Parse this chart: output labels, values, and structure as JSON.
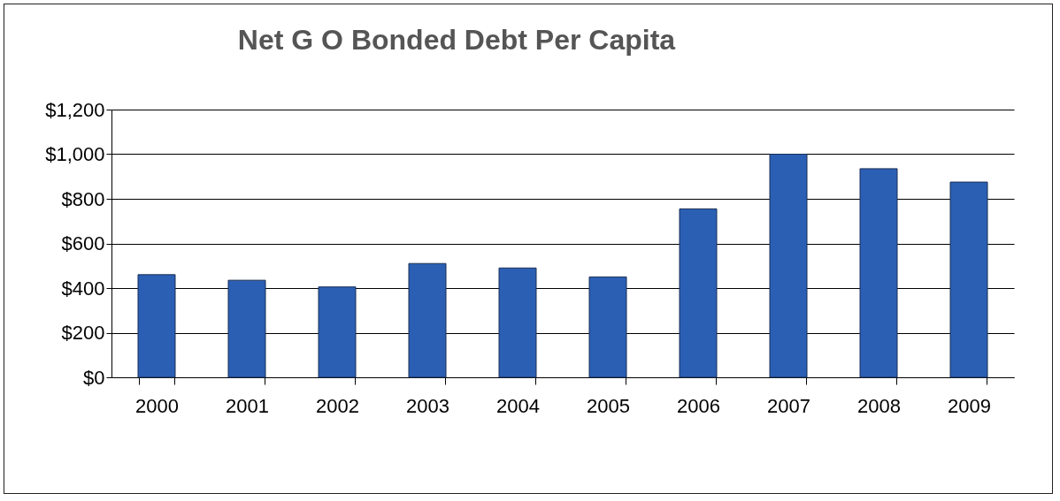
{
  "chart_data": {
    "type": "bar",
    "title": "Net G O Bonded Debt Per Capita",
    "categories": [
      "2000",
      "2001",
      "2002",
      "2003",
      "2004",
      "2005",
      "2006",
      "2007",
      "2008",
      "2009"
    ],
    "values": [
      460,
      435,
      405,
      510,
      490,
      450,
      755,
      1000,
      935,
      875
    ],
    "color": "#2b5fb4",
    "ylim": [
      0,
      1200
    ],
    "yticks": [
      {
        "value": 0,
        "label": "$0"
      },
      {
        "value": 200,
        "label": "$200"
      },
      {
        "value": 400,
        "label": "$400"
      },
      {
        "value": 600,
        "label": "$600"
      },
      {
        "value": 800,
        "label": "$800"
      },
      {
        "value": 1000,
        "label": "$1,000"
      },
      {
        "value": 1200,
        "label": "$1,200"
      }
    ],
    "grid": "y"
  }
}
